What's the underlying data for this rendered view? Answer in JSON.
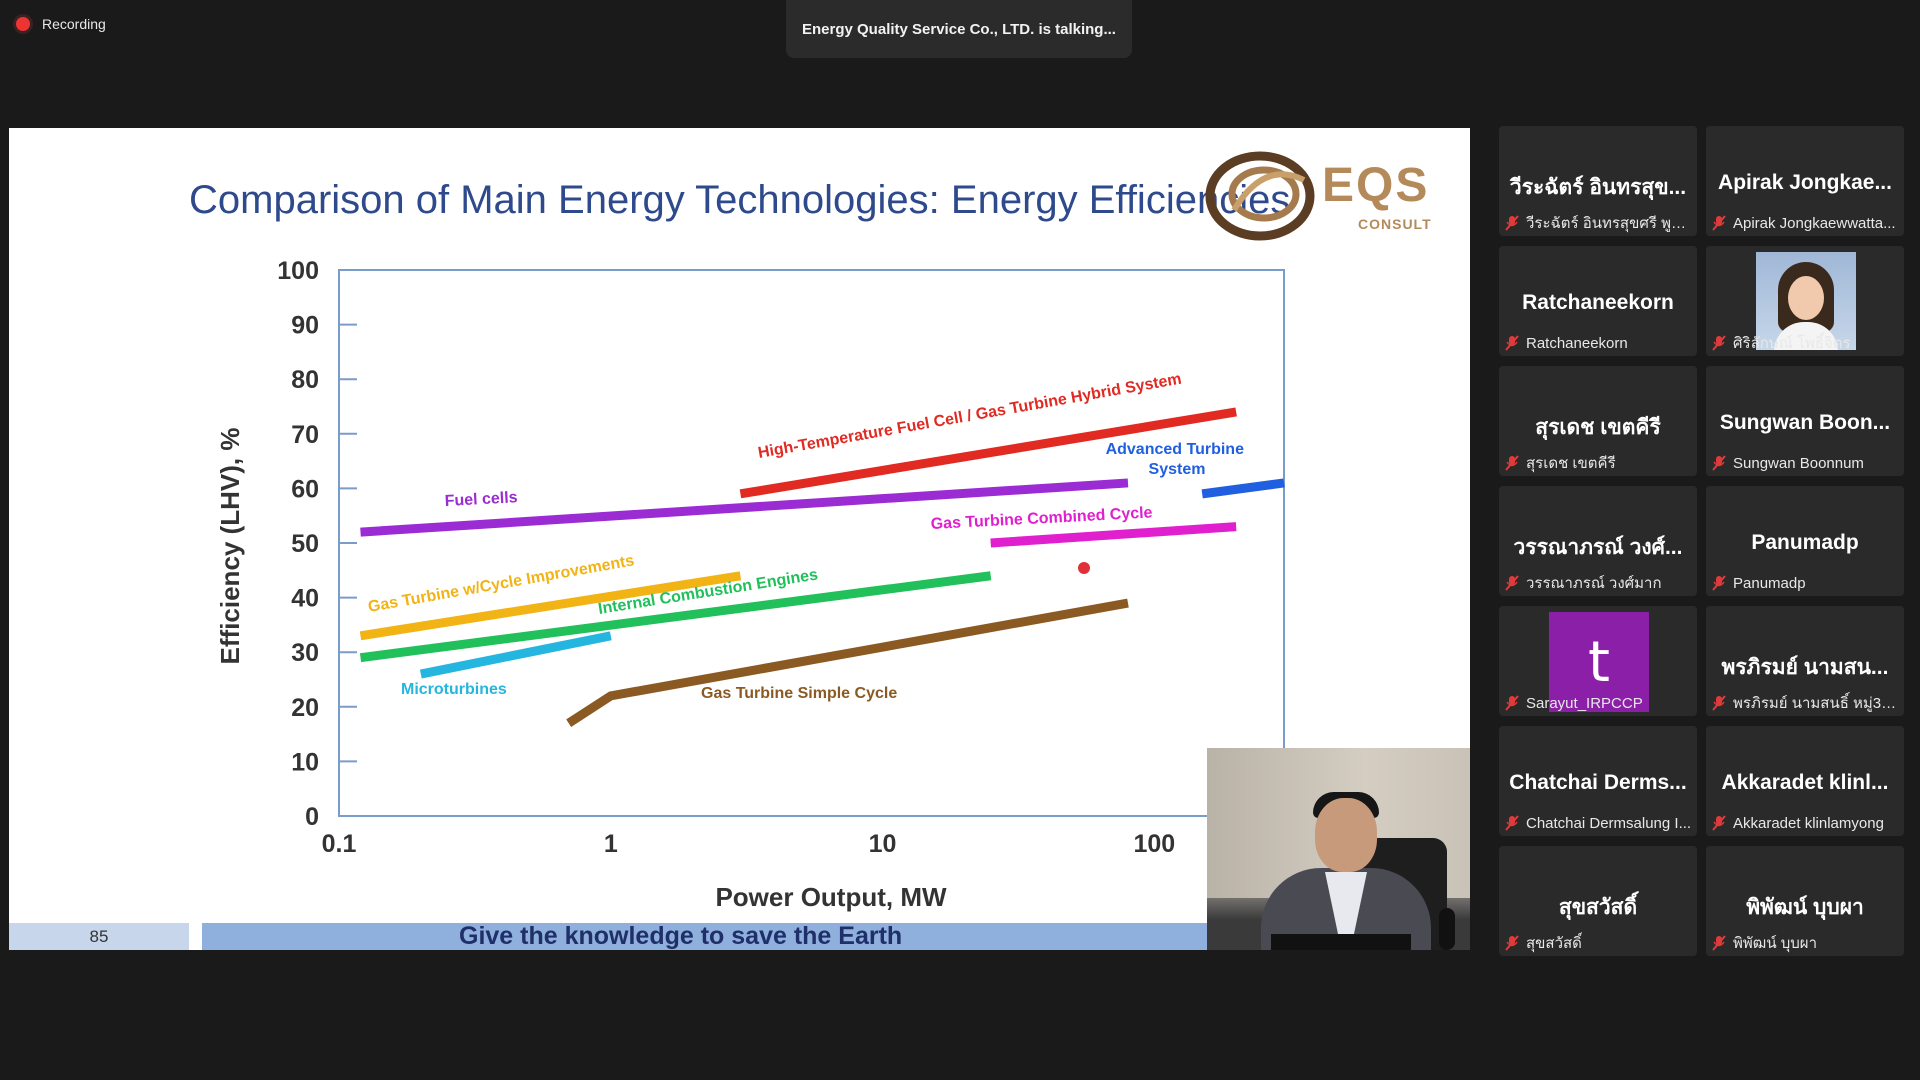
{
  "recording": {
    "label": "Recording"
  },
  "talking": {
    "text": "Energy Quality Service Co., LTD. is talking..."
  },
  "slide": {
    "title": "Comparison of Main Energy Technologies: Energy Efficiencies",
    "logo": {
      "main": "EQS",
      "sub": "CONSULT"
    },
    "page_number": "85",
    "banner": "Give the knowledge to save the Earth"
  },
  "chart_data": {
    "type": "line",
    "xlabel": "Power Output, MW",
    "ylabel": "Efficiency (LHV), %",
    "x_scale": "log",
    "xlim": [
      0.1,
      300
    ],
    "ylim": [
      0,
      100
    ],
    "x_ticks": [
      "0.1",
      "1",
      "10",
      "100"
    ],
    "y_ticks": [
      "0",
      "10",
      "20",
      "30",
      "40",
      "50",
      "60",
      "70",
      "80",
      "90",
      "100"
    ],
    "series": [
      {
        "name": "Fuel cells",
        "color": "#9b2bd3",
        "points": [
          [
            0.12,
            52
          ],
          [
            80,
            61
          ]
        ]
      },
      {
        "name": "High-Temperature Fuel Cell / Gas Turbine Hybrid System",
        "color": "#e02a22",
        "points": [
          [
            3,
            59
          ],
          [
            200,
            74
          ]
        ]
      },
      {
        "name": "Advanced Turbine System",
        "color": "#1f5fe0",
        "points": [
          [
            150,
            59
          ],
          [
            300,
            61
          ]
        ]
      },
      {
        "name": "Gas Turbine Combined Cycle",
        "color": "#e01fcf",
        "points": [
          [
            25,
            50
          ],
          [
            200,
            53
          ]
        ]
      },
      {
        "name": "Gas Turbine w/Cycle Improvements",
        "color": "#f2b315",
        "points": [
          [
            0.12,
            33
          ],
          [
            3,
            44
          ]
        ]
      },
      {
        "name": "Internal Combustion Engines",
        "color": "#22c05a",
        "points": [
          [
            0.12,
            29
          ],
          [
            25,
            44
          ]
        ]
      },
      {
        "name": "Microturbines",
        "color": "#25b6e0",
        "points": [
          [
            0.2,
            26
          ],
          [
            1,
            33
          ]
        ]
      },
      {
        "name": "Gas Turbine Simple Cycle",
        "color": "#8b5a22",
        "points": [
          [
            0.7,
            17
          ],
          [
            1,
            22
          ],
          [
            80,
            39
          ]
        ]
      }
    ]
  },
  "participants": [
    {
      "name": "วีระฉัตร์ อินทรสุข...",
      "label": "วีระฉัตร์ อินทรสุขศรี พูนไล่"
    },
    {
      "name": "Apirak Jongkae...",
      "label": "Apirak Jongkaewwatta..."
    },
    {
      "name": "Ratchaneekorn",
      "label": "Ratchaneekorn"
    },
    {
      "name": "",
      "label": "ศิริลักษณ์ โพธิ์จิตร"
    },
    {
      "name": "สุรเดช เขตคีรี",
      "label": "สุรเดช เขตคีรี"
    },
    {
      "name": "Sungwan Boon...",
      "label": "Sungwan Boonnum"
    },
    {
      "name": "วรรณาภรณ์ วงศ์...",
      "label": "วรรณาภรณ์ วงศ์มาก"
    },
    {
      "name": "Panumadp",
      "label": "Panumadp"
    },
    {
      "name": "t",
      "label": "Sarayut_IRPCCP"
    },
    {
      "name": "พรภิรมย์ นามสน...",
      "label": "พรภิรมย์ นามสนธิ์ หมู่3 ต...."
    },
    {
      "name": "Chatchai Derms...",
      "label": "Chatchai Dermsalung I..."
    },
    {
      "name": "Akkaradet klinl...",
      "label": "Akkaradet klinlamyong"
    },
    {
      "name": "สุขสวัสดิ์",
      "label": "สุขสวัสดิ์"
    },
    {
      "name": "พิพัฒน์ บุบผา",
      "label": "พิพัฒน์ บุบผา"
    }
  ]
}
